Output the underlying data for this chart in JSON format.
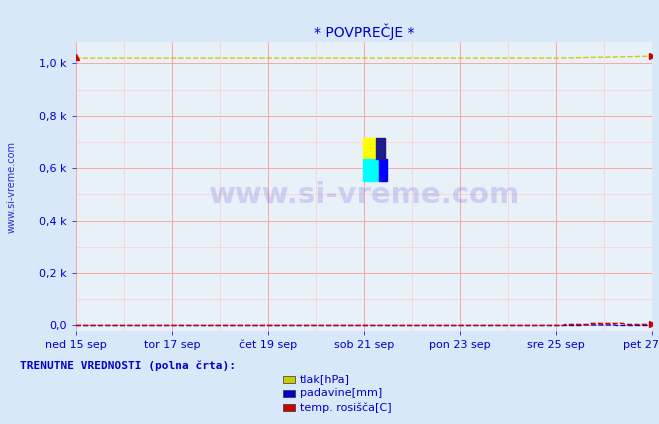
{
  "title": "* POVPREČJE *",
  "bg_color": "#d8e8f8",
  "plot_bg_color": "#e8f0f8",
  "ylabel_text": "www.si-vreme.com",
  "xlabel_ticks": [
    "ned 15 sep",
    "tor 17 sep",
    "čet 19 sep",
    "sob 21 sep",
    "pon 23 sep",
    "sre 25 sep",
    "pet 27 sep"
  ],
  "yticks": [
    0.0,
    0.2,
    0.4,
    0.6,
    0.8,
    1.0
  ],
  "ytick_labels": [
    "0,0",
    "0,2 k",
    "0,4 k",
    "0,6 k",
    "0,8 k",
    "1,0 k"
  ],
  "ylim": [
    -0.02,
    1.08
  ],
  "xlim": [
    0,
    336
  ],
  "n_points": 337,
  "tlak_value": 1.02,
  "tlak_color": "#cccc00",
  "padavine_color": "#0000cc",
  "rosisce_color": "#cc0000",
  "grid_major_color": "#ff9999",
  "grid_minor_color": "#ffcccc",
  "axis_color": "#0000cc",
  "title_color": "#0000cc",
  "watermark": "www.si-vreme.com",
  "watermark_color": "#0000cc",
  "watermark_alpha": 0.13,
  "footer_text": "TRENUTNE VREDNOSTI (polna črta):",
  "legend_items": [
    {
      "label": "tlak[hPa]",
      "color": "#cccc00"
    },
    {
      "label": "padavine[mm]",
      "color": "#0000cc"
    },
    {
      "label": "temp. rosišča[C]",
      "color": "#cc0000"
    }
  ],
  "logo_yellow": "#ffff00",
  "logo_cyan": "#00ffff",
  "logo_blue": "#0000ff"
}
